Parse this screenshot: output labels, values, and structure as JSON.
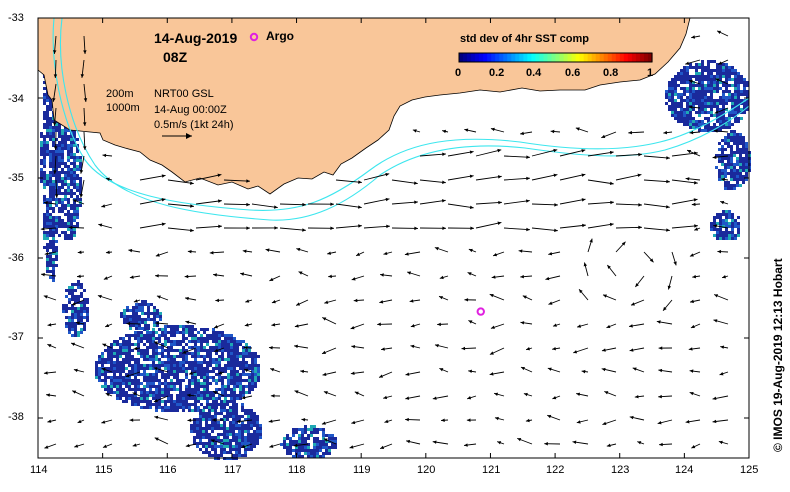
{
  "title": {
    "date": "14-Aug-2019",
    "time": "08Z"
  },
  "legend": {
    "argo_label": "Argo",
    "argo_color": "#e020e0"
  },
  "info_panel": {
    "contour_200": "200m",
    "contour_1000": "1000m",
    "product": "NRT00 GSL",
    "analysis_time": "14-Aug 00:00Z",
    "scale_label": "0.5m/s (1kt 24h)"
  },
  "colorbar": {
    "title": "std dev of 4hr SST comp",
    "ticks": [
      "0",
      "0.2",
      "0.4",
      "0.6",
      "0.8",
      "1"
    ]
  },
  "credit": "© IMOS 19-Aug-2019 12:13 Hobart",
  "axes": {
    "x_ticks": [
      "114",
      "115",
      "116",
      "117",
      "118",
      "119",
      "120",
      "121",
      "122",
      "123",
      "124",
      "125"
    ],
    "y_ticks": [
      "-33",
      "-34",
      "-35",
      "-36",
      "-37",
      "-38"
    ],
    "x_range": [
      114,
      125
    ],
    "y_range": [
      -38.5,
      -33
    ]
  },
  "colors": {
    "land": "#f9c699",
    "contour": "#3de6ee",
    "sst_cloud": "#1a2a9c"
  },
  "argo_float": {
    "lon": 120.85,
    "lat": -36.67
  }
}
